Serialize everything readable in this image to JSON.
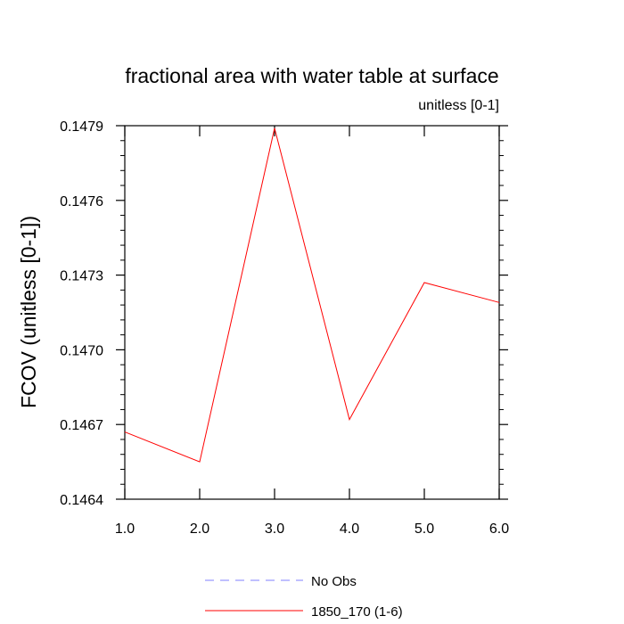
{
  "chart_data": {
    "type": "line",
    "title": "fractional area with water table at surface",
    "units_label": "unitless [0-1]",
    "ylabel": "FCOV  (unitless [0-1])",
    "xlabel": "",
    "xlim": [
      1.0,
      6.0
    ],
    "ylim": [
      0.1464,
      0.1479
    ],
    "x_ticks": [
      1.0,
      2.0,
      3.0,
      4.0,
      5.0,
      6.0
    ],
    "x_tick_labels": [
      "1.0",
      "2.0",
      "3.0",
      "4.0",
      "5.0",
      "6.0"
    ],
    "y_ticks": [
      0.1464,
      0.1467,
      0.147,
      0.1473,
      0.1476,
      0.1479
    ],
    "y_tick_labels": [
      "0.1464",
      "0.1467",
      "0.1470",
      "0.1473",
      "0.1476",
      "0.1479"
    ],
    "grid": false,
    "legend_position": "bottom",
    "series": [
      {
        "name": "No Obs",
        "color": "#8080ff",
        "style": "dashed",
        "x": [],
        "values": []
      },
      {
        "name": "1850_170 (1-6)",
        "color": "#ff0000",
        "style": "solid",
        "x": [
          1.0,
          2.0,
          3.0,
          4.0,
          5.0,
          6.0
        ],
        "values": [
          0.14667,
          0.14655,
          0.14789,
          0.14672,
          0.14727,
          0.14719
        ]
      }
    ]
  }
}
